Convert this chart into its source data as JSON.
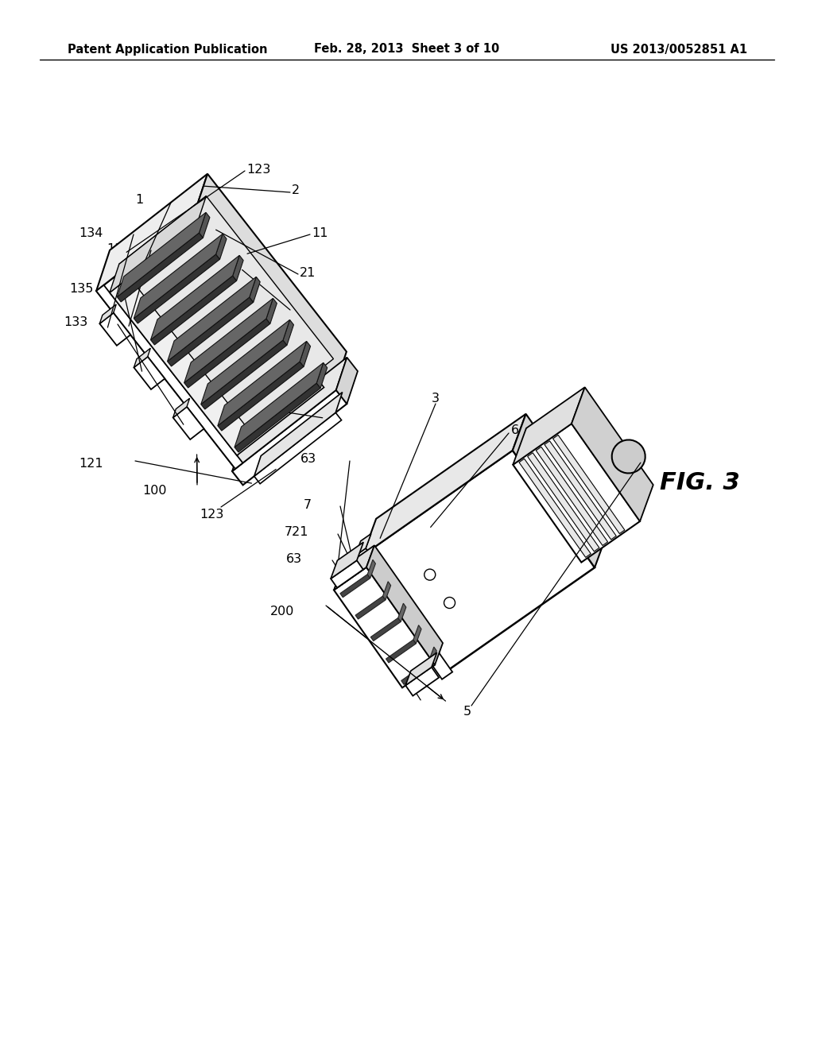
{
  "bg_color": "#ffffff",
  "line_color": "#000000",
  "header_left": "Patent Application Publication",
  "header_center": "Feb. 28, 2013  Sheet 3 of 10",
  "header_right": "US 2013/0052851 A1",
  "fig_label": "FIG. 3",
  "header_fontsize": 10.5,
  "label_fontsize": 11.5,
  "fig_label_fontsize": 22
}
